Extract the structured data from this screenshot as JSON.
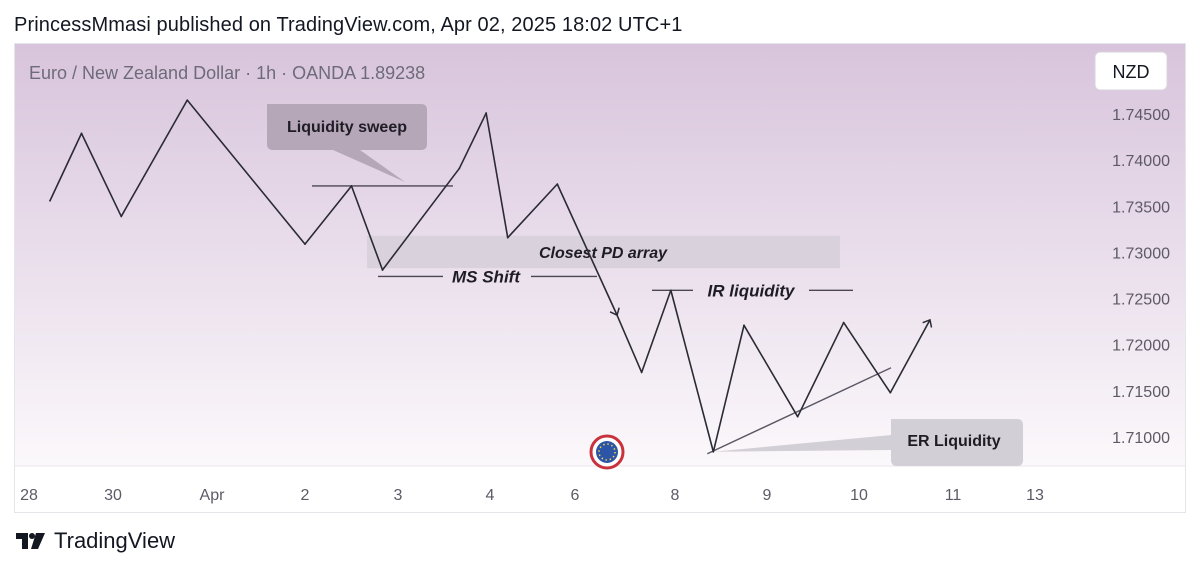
{
  "header": {
    "published_line": "PrincessMmasi published on TradingView.com, Apr 02, 2025 18:02 UTC+1"
  },
  "footer": {
    "brand": "TradingView"
  },
  "symbol": {
    "title_line": "Euro / New Zealand Dollar · 1h · OANDA  1.89238",
    "currency_badge": "NZD"
  },
  "colors": {
    "bg_top": "#d8c4dc",
    "bg_bottom": "#fbf8fb",
    "line": "#2b2b35",
    "label_box": "#b6a7b8",
    "zone_box": "#d6cfd8"
  },
  "chart_data": {
    "type": "line",
    "title": "",
    "xlabel": "",
    "ylabel": "",
    "ylim": [
      1.706,
      1.7505
    ],
    "x_ticks": [
      "28",
      "30",
      "Apr",
      "2",
      "3",
      "4",
      "6",
      "8",
      "9",
      "10",
      "11",
      "13"
    ],
    "y_ticks": [
      "1.74500",
      "1.74000",
      "1.73500",
      "1.73000",
      "1.72500",
      "1.72000",
      "1.71500",
      "1.71000"
    ],
    "y_tick_values": [
      1.745,
      1.74,
      1.735,
      1.73,
      1.725,
      1.72,
      1.715,
      1.71
    ],
    "series": [
      {
        "points": [
          {
            "x": "Mar 28 12:00",
            "y": 1.7356
          },
          {
            "x": "Mar 29 06:00",
            "y": 1.7429
          },
          {
            "x": "Mar 30 04:00",
            "y": 1.7339
          },
          {
            "x": "Mar 31 12:00",
            "y": 1.7465
          },
          {
            "x": "Apr 2 00:00",
            "y": 1.7309
          },
          {
            "x": "Apr 2 12:00",
            "y": 1.7372
          },
          {
            "x": "Apr 2 20:00",
            "y": 1.7281
          },
          {
            "x": "Apr 3 16:00",
            "y": 1.7391
          },
          {
            "x": "Apr 3 23:00",
            "y": 1.7451
          },
          {
            "x": "Apr 4 10:00",
            "y": 1.7316
          },
          {
            "x": "Apr 5 14:00",
            "y": 1.7374
          },
          {
            "x": "Apr 6 20:00",
            "y": 1.7233
          },
          {
            "x": "Apr 7 08:00",
            "y": 1.717
          },
          {
            "x": "Apr 7 22:00",
            "y": 1.7259
          },
          {
            "x": "Apr 8 10:00",
            "y": 1.7084
          },
          {
            "x": "Apr 8 18:00",
            "y": 1.7221
          },
          {
            "x": "Apr 9 08:00",
            "y": 1.7122
          },
          {
            "x": "Apr 9 20:00",
            "y": 1.7224
          },
          {
            "x": "Apr 10 08:00",
            "y": 1.7148
          },
          {
            "x": "Apr 10 18:00",
            "y": 1.7226
          }
        ]
      }
    ],
    "annotations": [
      {
        "id": "liquidity-sweep",
        "text": "Liquidity sweep",
        "level": 1.7372
      },
      {
        "id": "closest-pd-array",
        "text": "Closest PD array",
        "range": [
          1.7283,
          1.7318
        ]
      },
      {
        "id": "ms-shift",
        "text": "MS Shift",
        "level": 1.7274
      },
      {
        "id": "ir-liquidity",
        "text": "IR liquidity",
        "level": 1.7259
      },
      {
        "id": "er-liquidity",
        "text": "ER Liquidity"
      }
    ],
    "grid": false,
    "legend": "none"
  }
}
